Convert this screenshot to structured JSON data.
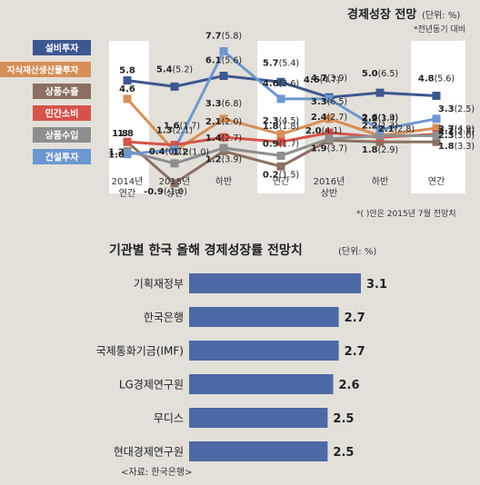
{
  "chart_data": [
    {
      "type": "line",
      "title": "경제성장 전망",
      "unit": "(단위: %)",
      "subnote": "*전년동기 대비",
      "footnote": "*( )안은 2015년 7월 전망치",
      "categories": [
        {
          "line1": "2014년",
          "line2": "연간"
        },
        {
          "line1": "2015년",
          "line2": "상반"
        },
        {
          "line1": "하반",
          "line2": ""
        },
        {
          "line1": "연간",
          "line2": ""
        },
        {
          "line1": "2016년",
          "line2": "상반"
        },
        {
          "line1": "하반",
          "line2": ""
        },
        {
          "line1": "연간",
          "line2": ""
        }
      ],
      "ylim": [
        -1.5,
        8.2
      ],
      "series": [
        {
          "name": "설비투자",
          "color": "#3d5790",
          "values": [
            5.8,
            5.4,
            6.1,
            5.7,
            4.7,
            5.0,
            4.8
          ],
          "labels": [
            "5.8",
            "5.4",
            "6.1",
            "5.7",
            "4.7",
            "5.0",
            "4.8"
          ],
          "prev": [
            "",
            "(5.2)",
            "(5.6)",
            "(5.4)",
            "(3.9)",
            "(6.5)",
            "(5.6)"
          ]
        },
        {
          "name": "지식재산생산물투자",
          "color": "#d68f58",
          "values": [
            4.6,
            1.2,
            3.3,
            2.3,
            3.3,
            2.2,
            2.7
          ],
          "labels": [
            "4.6",
            "1.2",
            "3.3",
            "2.3",
            "3.3",
            "2.2",
            "2.7"
          ],
          "prev": [
            "",
            "(1.0)",
            "(6.8)",
            "(4.5)",
            "(6.5)",
            "(3.4)",
            "(4.9)"
          ]
        },
        {
          "name": "상품수출",
          "color": "#8a6f62",
          "values": [
            1.8,
            -0.9,
            1.2,
            0.2,
            1.9,
            1.8,
            1.8
          ],
          "labels": [
            "1.8",
            "-0.9",
            "1.2",
            "0.2",
            "1.9",
            "1.8",
            "1.8"
          ],
          "prev": [
            "",
            "(-1.0)",
            "(3.9)",
            "(1.5)",
            "(3.7)",
            "(2.9)",
            "(3.3)"
          ]
        },
        {
          "name": "민간소비",
          "color": "#d5534a",
          "values": [
            1.8,
            1.6,
            2.1,
            1.8,
            2.4,
            2.1,
            2.3
          ],
          "labels": [
            "1.8",
            "1.6",
            "2.1",
            "1.8",
            "2.4",
            "2.1",
            "2.3"
          ],
          "prev": [
            "",
            "(1.7)",
            "(2.0)",
            "(1.8)",
            "(2.7)",
            "(2.8)",
            "(3.0)"
          ]
        },
        {
          "name": "상품수입",
          "color": "#8e8e8e",
          "values": [
            1.2,
            0.4,
            1.4,
            0.9,
            2.0,
            2.2,
            2.2
          ],
          "labels": [
            "1.2",
            "0.4",
            "1.4",
            "0.9",
            "2.0",
            "2.2",
            "2.2"
          ],
          "prev": [
            "",
            "(0.7)",
            "(2.7)",
            "(1.7)",
            "(4.1)",
            "(1.3)",
            "(2.8)"
          ]
        },
        {
          "name": "건설투자",
          "color": "#6d97cf",
          "values": [
            1.0,
            1.3,
            7.7,
            4.6,
            4.6,
            2.6,
            3.3
          ],
          "labels": [
            "1.0",
            "1.3",
            "7.7",
            "4.6",
            "4.6",
            "2.6",
            "3.3"
          ],
          "prev": [
            "",
            "(2.1)",
            "(5.8)",
            "(3.6)",
            "(4.7)",
            "(1.9)",
            "(2.5)"
          ]
        }
      ]
    },
    {
      "type": "bar",
      "title": "기관별 한국 올해 경제성장률 전망치",
      "unit": "(단위: %)",
      "categories": [
        "기획재정부",
        "한국은행",
        "국제통화기금(IMF)",
        "LG경제연구원",
        "무디스",
        "현대경제연구원"
      ],
      "values": [
        3.1,
        2.7,
        2.7,
        2.6,
        2.5,
        2.5
      ],
      "value_labels": [
        "3.1",
        "2.7",
        "2.7",
        "2.6",
        "2.5",
        "2.5"
      ],
      "bar_color": "#4d6aa6",
      "source": "<자료: 한국은행>"
    }
  ]
}
